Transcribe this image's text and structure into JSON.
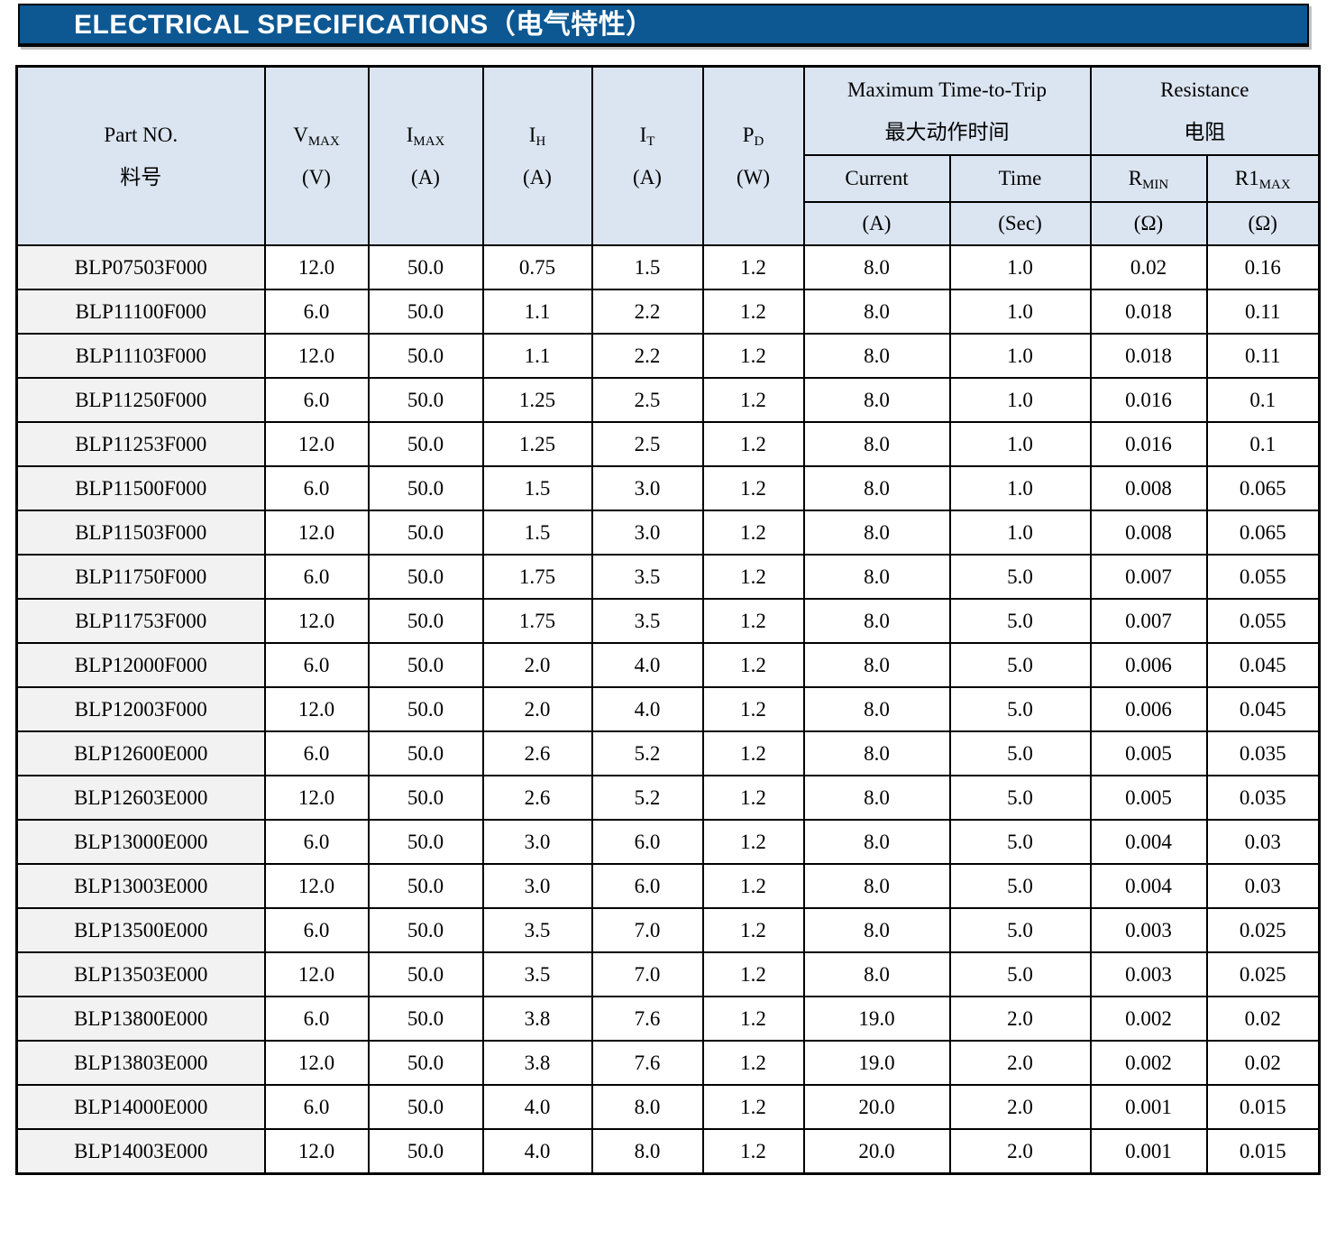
{
  "page": {
    "title": "ELECTRICAL SPECIFICATIONS（电气特性）"
  },
  "colors": {
    "title_bar_bg": "#0d5893",
    "title_text": "#ffffff",
    "table_header_bg": "#dbe5f1",
    "part_column_bg": "#f2f2f2",
    "grid_line": "#000000",
    "page_bg": "#ffffff"
  },
  "table": {
    "header": {
      "part_no": {
        "line1": "Part NO.",
        "line2": "料号"
      },
      "vmax": {
        "sym": "V",
        "sub": "MAX",
        "unit": "(V)"
      },
      "imax": {
        "sym": "I",
        "sub": "MAX",
        "unit": "(A)"
      },
      "ih": {
        "sym": "I",
        "sub": "H",
        "unit": "(A)"
      },
      "it": {
        "sym": "I",
        "sub": "T",
        "unit": "(A)"
      },
      "pd": {
        "sym": "P",
        "sub": "D",
        "unit": "(W)"
      },
      "trip_group": {
        "line1": "Maximum Time-to-Trip",
        "line2": "最大动作时间"
      },
      "resistance_group": {
        "line1": "Resistance",
        "line2": "电阻"
      },
      "current": {
        "label": "Current",
        "unit": "(A)"
      },
      "time": {
        "label": "Time",
        "unit": "(Sec)"
      },
      "rmin": {
        "sym": "R",
        "sub": "MIN",
        "unit": "(Ω)"
      },
      "r1max": {
        "sym": "R1",
        "sub": "MAX",
        "unit": "(Ω)"
      }
    },
    "rows": [
      [
        "BLP07503F000",
        "12.0",
        "50.0",
        "0.75",
        "1.5",
        "1.2",
        "8.0",
        "1.0",
        "0.02",
        "0.16"
      ],
      [
        "BLP11100F000",
        "6.0",
        "50.0",
        "1.1",
        "2.2",
        "1.2",
        "8.0",
        "1.0",
        "0.018",
        "0.11"
      ],
      [
        "BLP11103F000",
        "12.0",
        "50.0",
        "1.1",
        "2.2",
        "1.2",
        "8.0",
        "1.0",
        "0.018",
        "0.11"
      ],
      [
        "BLP11250F000",
        "6.0",
        "50.0",
        "1.25",
        "2.5",
        "1.2",
        "8.0",
        "1.0",
        "0.016",
        "0.1"
      ],
      [
        "BLP11253F000",
        "12.0",
        "50.0",
        "1.25",
        "2.5",
        "1.2",
        "8.0",
        "1.0",
        "0.016",
        "0.1"
      ],
      [
        "BLP11500F000",
        "6.0",
        "50.0",
        "1.5",
        "3.0",
        "1.2",
        "8.0",
        "1.0",
        "0.008",
        "0.065"
      ],
      [
        "BLP11503F000",
        "12.0",
        "50.0",
        "1.5",
        "3.0",
        "1.2",
        "8.0",
        "1.0",
        "0.008",
        "0.065"
      ],
      [
        "BLP11750F000",
        "6.0",
        "50.0",
        "1.75",
        "3.5",
        "1.2",
        "8.0",
        "5.0",
        "0.007",
        "0.055"
      ],
      [
        "BLP11753F000",
        "12.0",
        "50.0",
        "1.75",
        "3.5",
        "1.2",
        "8.0",
        "5.0",
        "0.007",
        "0.055"
      ],
      [
        "BLP12000F000",
        "6.0",
        "50.0",
        "2.0",
        "4.0",
        "1.2",
        "8.0",
        "5.0",
        "0.006",
        "0.045"
      ],
      [
        "BLP12003F000",
        "12.0",
        "50.0",
        "2.0",
        "4.0",
        "1.2",
        "8.0",
        "5.0",
        "0.006",
        "0.045"
      ],
      [
        "BLP12600E000",
        "6.0",
        "50.0",
        "2.6",
        "5.2",
        "1.2",
        "8.0",
        "5.0",
        "0.005",
        "0.035"
      ],
      [
        "BLP12603E000",
        "12.0",
        "50.0",
        "2.6",
        "5.2",
        "1.2",
        "8.0",
        "5.0",
        "0.005",
        "0.035"
      ],
      [
        "BLP13000E000",
        "6.0",
        "50.0",
        "3.0",
        "6.0",
        "1.2",
        "8.0",
        "5.0",
        "0.004",
        "0.03"
      ],
      [
        "BLP13003E000",
        "12.0",
        "50.0",
        "3.0",
        "6.0",
        "1.2",
        "8.0",
        "5.0",
        "0.004",
        "0.03"
      ],
      [
        "BLP13500E000",
        "6.0",
        "50.0",
        "3.5",
        "7.0",
        "1.2",
        "8.0",
        "5.0",
        "0.003",
        "0.025"
      ],
      [
        "BLP13503E000",
        "12.0",
        "50.0",
        "3.5",
        "7.0",
        "1.2",
        "8.0",
        "5.0",
        "0.003",
        "0.025"
      ],
      [
        "BLP13800E000",
        "6.0",
        "50.0",
        "3.8",
        "7.6",
        "1.2",
        "19.0",
        "2.0",
        "0.002",
        "0.02"
      ],
      [
        "BLP13803E000",
        "12.0",
        "50.0",
        "3.8",
        "7.6",
        "1.2",
        "19.0",
        "2.0",
        "0.002",
        "0.02"
      ],
      [
        "BLP14000E000",
        "6.0",
        "50.0",
        "4.0",
        "8.0",
        "1.2",
        "20.0",
        "2.0",
        "0.001",
        "0.015"
      ],
      [
        "BLP14003E000",
        "12.0",
        "50.0",
        "4.0",
        "8.0",
        "1.2",
        "20.0",
        "2.0",
        "0.001",
        "0.015"
      ]
    ]
  }
}
